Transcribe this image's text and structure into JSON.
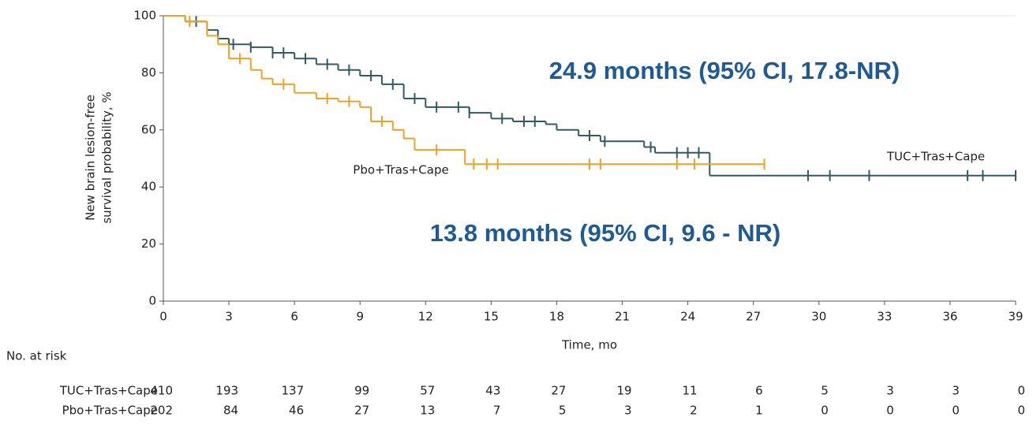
{
  "chart_data": {
    "type": "km",
    "y_label": [
      "New brain lesion-free",
      "survival probability, %"
    ],
    "x_label": "Time, mo",
    "xlim": [
      0,
      39
    ],
    "xticks": [
      0,
      3,
      6,
      9,
      12,
      15,
      18,
      21,
      24,
      27,
      30,
      33,
      36,
      39
    ],
    "ylim": [
      0,
      100
    ],
    "yticks": [
      0,
      20,
      40,
      60,
      80,
      100
    ],
    "annotations": [
      "24.9 months (95% CI, 17.8-NR)",
      "13.8 months (95% CI, 9.6 - NR)"
    ],
    "series": [
      {
        "name": "TUC+Tras+Cape",
        "color": "#2f5a66",
        "x": [
          0,
          1,
          2,
          2.5,
          3,
          4,
          5,
          6,
          7,
          8,
          9,
          10,
          11,
          12,
          14,
          15,
          16,
          17.5,
          18,
          19,
          20,
          22,
          22.5,
          25,
          39
        ],
        "values": [
          100,
          98,
          95,
          92,
          90,
          89,
          87,
          85,
          83,
          81,
          79,
          76,
          71,
          68,
          66,
          64,
          63,
          62,
          60,
          58,
          56,
          54,
          52,
          44,
          44
        ],
        "censor_x": [
          1.5,
          3.2,
          4,
          5,
          5.5,
          6.5,
          7.5,
          8.5,
          9.5,
          10.5,
          11.5,
          12.5,
          13.5,
          14,
          15.5,
          16.5,
          17,
          19.5,
          20.2,
          22.3,
          23.5,
          24,
          24.5,
          29.5,
          30.5,
          32.3,
          36.8,
          37.5,
          39
        ],
        "censor_y": [
          98,
          90,
          89,
          87,
          87,
          85,
          83,
          81,
          79,
          76,
          71,
          68,
          68,
          66,
          64,
          63,
          63,
          58,
          56,
          54,
          52,
          52,
          52,
          44,
          44,
          44,
          44,
          44,
          44
        ]
      },
      {
        "name": "Pbo+Tras+Cape",
        "color": "#f0a120",
        "x": [
          0,
          1,
          2,
          2.5,
          3,
          4,
          4.5,
          5,
          6,
          7,
          8,
          9,
          9.5,
          10.5,
          11,
          11.5,
          13.8,
          27.5
        ],
        "values": [
          100,
          98,
          93,
          90,
          85,
          81,
          78,
          76,
          73,
          71,
          70,
          68,
          63,
          60,
          57,
          53,
          48,
          48
        ],
        "censor_x": [
          1.2,
          3.5,
          5.5,
          7.5,
          8.5,
          10,
          12.5,
          14.2,
          14.8,
          15.3,
          19.5,
          20,
          23.5,
          24.3,
          27.5
        ],
        "censor_y": [
          98,
          85,
          76,
          71,
          70,
          63,
          53,
          48,
          48,
          48,
          48,
          48,
          48,
          48,
          48
        ]
      }
    ],
    "risk_table": {
      "title": "No. at risk",
      "rows": [
        {
          "label": "TUC+Tras+Cape",
          "values": [
            410,
            193,
            137,
            99,
            57,
            43,
            27,
            19,
            11,
            6,
            5,
            3,
            3,
            0
          ]
        },
        {
          "label": "Pbo+Tras+Cape",
          "values": [
            202,
            84,
            46,
            27,
            13,
            7,
            5,
            3,
            2,
            1,
            0,
            0,
            0,
            0
          ]
        }
      ]
    }
  }
}
